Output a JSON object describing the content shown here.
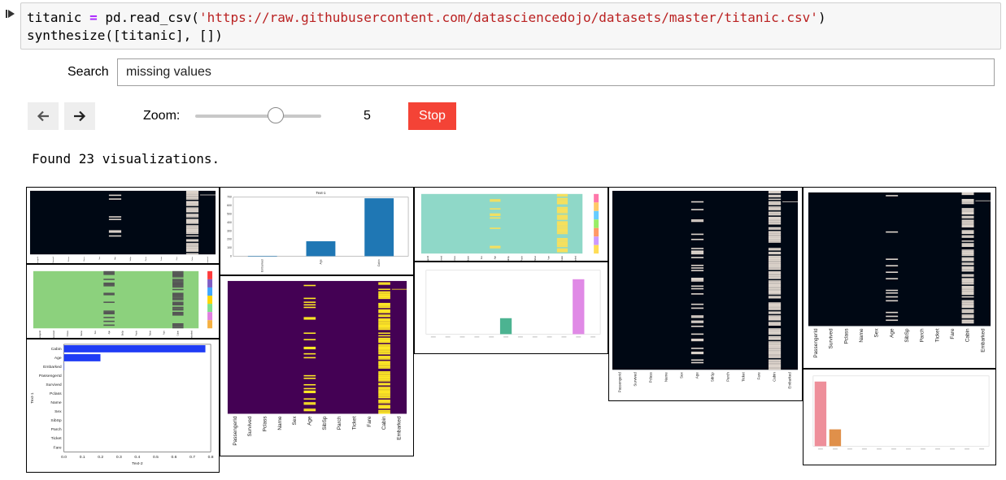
{
  "code": {
    "line1": {
      "var": "titanic",
      "op": " = ",
      "call": "pd.read_csv(",
      "url": "'https://raw.githubusercontent.com/datasciencedojo/datasets/master/titanic.csv'",
      "close": ")"
    },
    "line2": "synthesize([titanic], [])"
  },
  "search": {
    "label": "Search",
    "value": "missing values"
  },
  "zoom": {
    "label": "Zoom:",
    "value": "5",
    "level": 5,
    "min": 1,
    "max": 10
  },
  "stop_label": "Stop",
  "found_text": "Found 23 visualizations.",
  "columns": [
    "PassengerId",
    "Survived",
    "Pclass",
    "Name",
    "Sex",
    "Age",
    "SibSp",
    "Parch",
    "Ticket",
    "Fare",
    "Cabin",
    "Embarked"
  ],
  "bar_chart_b": {
    "title": "Text-1",
    "categories": [
      "Embarked",
      "Age",
      "Cabin"
    ],
    "values": [
      2,
      177,
      687
    ],
    "yticks": [
      "0",
      "100",
      "200",
      "300",
      "400",
      "500",
      "600",
      "700"
    ],
    "color": "#1f77b4"
  },
  "hbar_chart": {
    "categories": [
      "Cabin",
      "Age",
      "Embarked",
      "PassengerId",
      "Survived",
      "Pclass",
      "Name",
      "Sex",
      "SibSp",
      "Parch",
      "Ticket",
      "Fare"
    ],
    "values": [
      0.771,
      0.199,
      0.002,
      0,
      0,
      0,
      0,
      0,
      0,
      0,
      0,
      0
    ],
    "xticks": [
      "0.0",
      "0.1",
      "0.2",
      "0.3",
      "0.4",
      "0.5",
      "0.6",
      "0.7",
      "0.8"
    ],
    "xlabel": "Text-2",
    "ylabel": "Text-1",
    "color": "#1f3cf5"
  },
  "colors": {
    "dark_heatmap": "#000814",
    "green_heatmap": "#8cd17d",
    "teal_heatmap": "#8fd8c8",
    "purple_heatmap": "#440154",
    "yellow_mark": "#fde725",
    "stop": "#f44336"
  },
  "icons": {
    "run": "run-cell-icon",
    "back": "arrow-left-icon",
    "forward": "arrow-right-icon"
  }
}
